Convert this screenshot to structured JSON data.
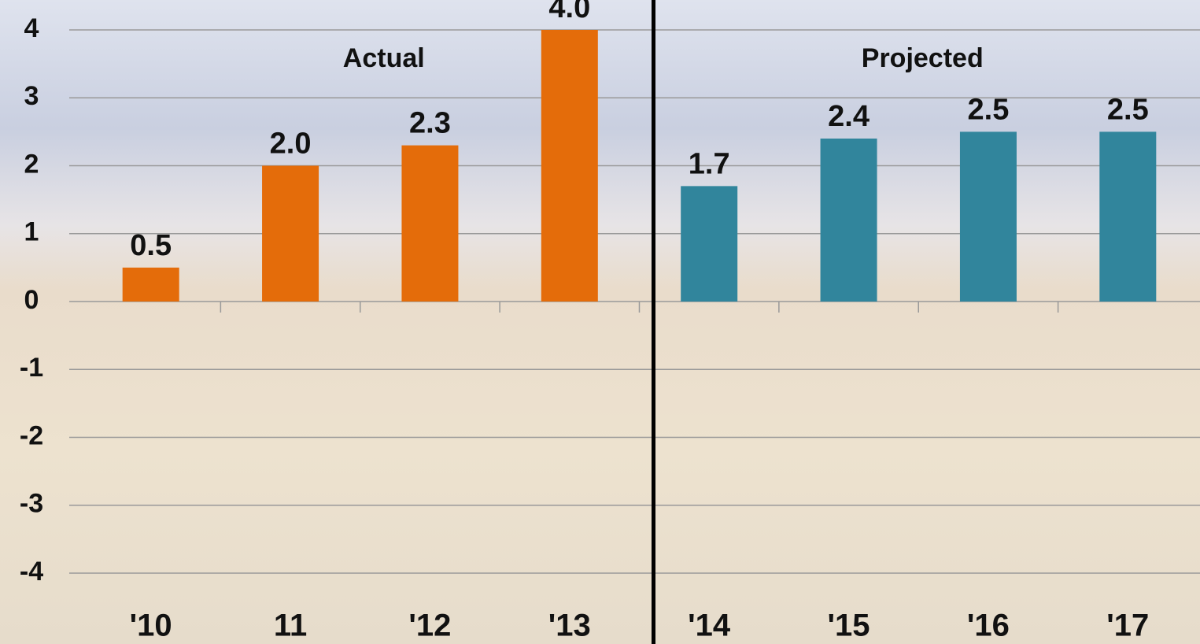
{
  "chart_data": {
    "type": "bar",
    "categories": [
      "'10",
      "11",
      "'12",
      "'13",
      "'14",
      "'15",
      "'16",
      "'17"
    ],
    "series": [
      {
        "name": "Actual",
        "color": "#e46c0a",
        "values": [
          0.5,
          2.0,
          2.3,
          4.0,
          null,
          null,
          null,
          null
        ],
        "value_labels": [
          "0.5",
          "2.0",
          "2.3",
          "4.0",
          null,
          null,
          null,
          null
        ]
      },
      {
        "name": "Projected",
        "color": "#31859c",
        "values": [
          null,
          null,
          null,
          null,
          1.7,
          2.4,
          2.5,
          2.5
        ],
        "value_labels": [
          null,
          null,
          null,
          null,
          "1.7",
          "2.4",
          "2.5",
          "2.5"
        ]
      }
    ],
    "ylim": [
      -4,
      4
    ],
    "yticks": [
      -4,
      -3,
      -2,
      -1,
      0,
      1,
      2,
      3,
      4
    ],
    "grid": true
  }
}
